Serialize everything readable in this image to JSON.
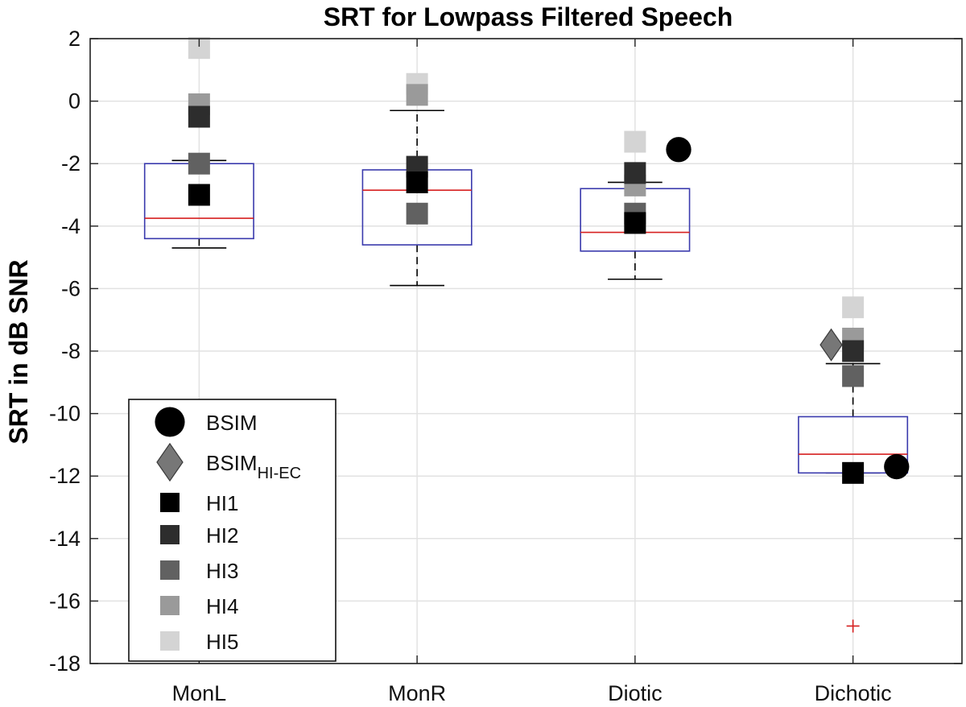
{
  "chart_data": {
    "type": "box",
    "title": "SRT for Lowpass Filtered Speech",
    "xlabel": "",
    "ylabel": "SRT in dB SNR",
    "categories": [
      "MonL",
      "MonR",
      "Diotic",
      "Dichotic"
    ],
    "ylim": [
      -18,
      2
    ],
    "yticks": [
      2,
      0,
      -2,
      -4,
      -6,
      -8,
      -10,
      -12,
      -14,
      -16,
      -18
    ],
    "grid": true,
    "legend_position": "bottom-left",
    "boxes": [
      {
        "category": "MonL",
        "q1": -4.4,
        "median": -3.75,
        "q3": -2.0,
        "whisker_low": -4.7,
        "whisker_high": -1.9,
        "outliers": []
      },
      {
        "category": "MonR",
        "q1": -4.6,
        "median": -2.85,
        "q3": -2.2,
        "whisker_low": -5.9,
        "whisker_high": -0.3,
        "outliers": []
      },
      {
        "category": "Diotic",
        "q1": -4.8,
        "median": -4.2,
        "q3": -2.8,
        "whisker_low": -5.7,
        "whisker_high": -2.6,
        "outliers": []
      },
      {
        "category": "Dichotic",
        "q1": -11.9,
        "median": -11.3,
        "q3": -10.1,
        "whisker_low": -11.9,
        "whisker_high": -8.4,
        "outliers": [
          -16.8
        ]
      }
    ],
    "series": [
      {
        "name": "BSIM",
        "label_main": "BSIM",
        "label_sub": "",
        "marker": "circle",
        "color": "#000000",
        "points": [
          {
            "category": "Diotic",
            "y": -1.55,
            "dx": 0.2
          },
          {
            "category": "Dichotic",
            "y": -11.7,
            "dx": 0.2
          }
        ]
      },
      {
        "name": "BSIM HI-EC",
        "label_main": "BSIM",
        "label_sub": "HI-EC",
        "marker": "diamond",
        "color": "#777777",
        "points": [
          {
            "category": "Dichotic",
            "y": -7.8,
            "dx": -0.1
          }
        ]
      },
      {
        "name": "HI1",
        "label_main": "HI1",
        "label_sub": "",
        "marker": "square",
        "color": "#000000",
        "points": [
          {
            "category": "MonL",
            "y": -3.0,
            "dx": 0
          },
          {
            "category": "MonR",
            "y": -2.6,
            "dx": 0
          },
          {
            "category": "Diotic",
            "y": -3.9,
            "dx": 0
          },
          {
            "category": "Dichotic",
            "y": -11.9,
            "dx": 0
          }
        ]
      },
      {
        "name": "HI2",
        "label_main": "HI2",
        "label_sub": "",
        "marker": "square",
        "color": "#2d2d2d",
        "points": [
          {
            "category": "MonL",
            "y": -0.5,
            "dx": 0
          },
          {
            "category": "MonR",
            "y": -2.1,
            "dx": 0
          },
          {
            "category": "Diotic",
            "y": -2.3,
            "dx": 0
          },
          {
            "category": "Dichotic",
            "y": -8.0,
            "dx": 0
          }
        ]
      },
      {
        "name": "HI3",
        "label_main": "HI3",
        "label_sub": "",
        "marker": "square",
        "color": "#616161",
        "points": [
          {
            "category": "MonL",
            "y": -2.0,
            "dx": 0
          },
          {
            "category": "MonR",
            "y": -3.6,
            "dx": 0
          },
          {
            "category": "Diotic",
            "y": -3.6,
            "dx": 0
          },
          {
            "category": "Dichotic",
            "y": -8.8,
            "dx": 0
          }
        ]
      },
      {
        "name": "HI4",
        "label_main": "HI4",
        "label_sub": "",
        "marker": "square",
        "color": "#9a9a9a",
        "points": [
          {
            "category": "MonL",
            "y": -0.1,
            "dx": 0
          },
          {
            "category": "MonR",
            "y": 0.2,
            "dx": 0
          },
          {
            "category": "Diotic",
            "y": -2.7,
            "dx": 0
          },
          {
            "category": "Dichotic",
            "y": -7.6,
            "dx": 0
          }
        ]
      },
      {
        "name": "HI5",
        "label_main": "HI5",
        "label_sub": "",
        "marker": "square",
        "color": "#d4d4d4",
        "points": [
          {
            "category": "MonL",
            "y": 1.7,
            "dx": 0
          },
          {
            "category": "MonR",
            "y": 0.55,
            "dx": 0
          },
          {
            "category": "Diotic",
            "y": -1.3,
            "dx": 0
          },
          {
            "category": "Dichotic",
            "y": -6.6,
            "dx": 0
          }
        ]
      }
    ],
    "colors": {
      "box": "#3a3aad",
      "median": "#d62020",
      "whisker": "#000000",
      "outlier": "#d62020",
      "grid": "#e2e2e2",
      "axis": "#222222"
    }
  }
}
